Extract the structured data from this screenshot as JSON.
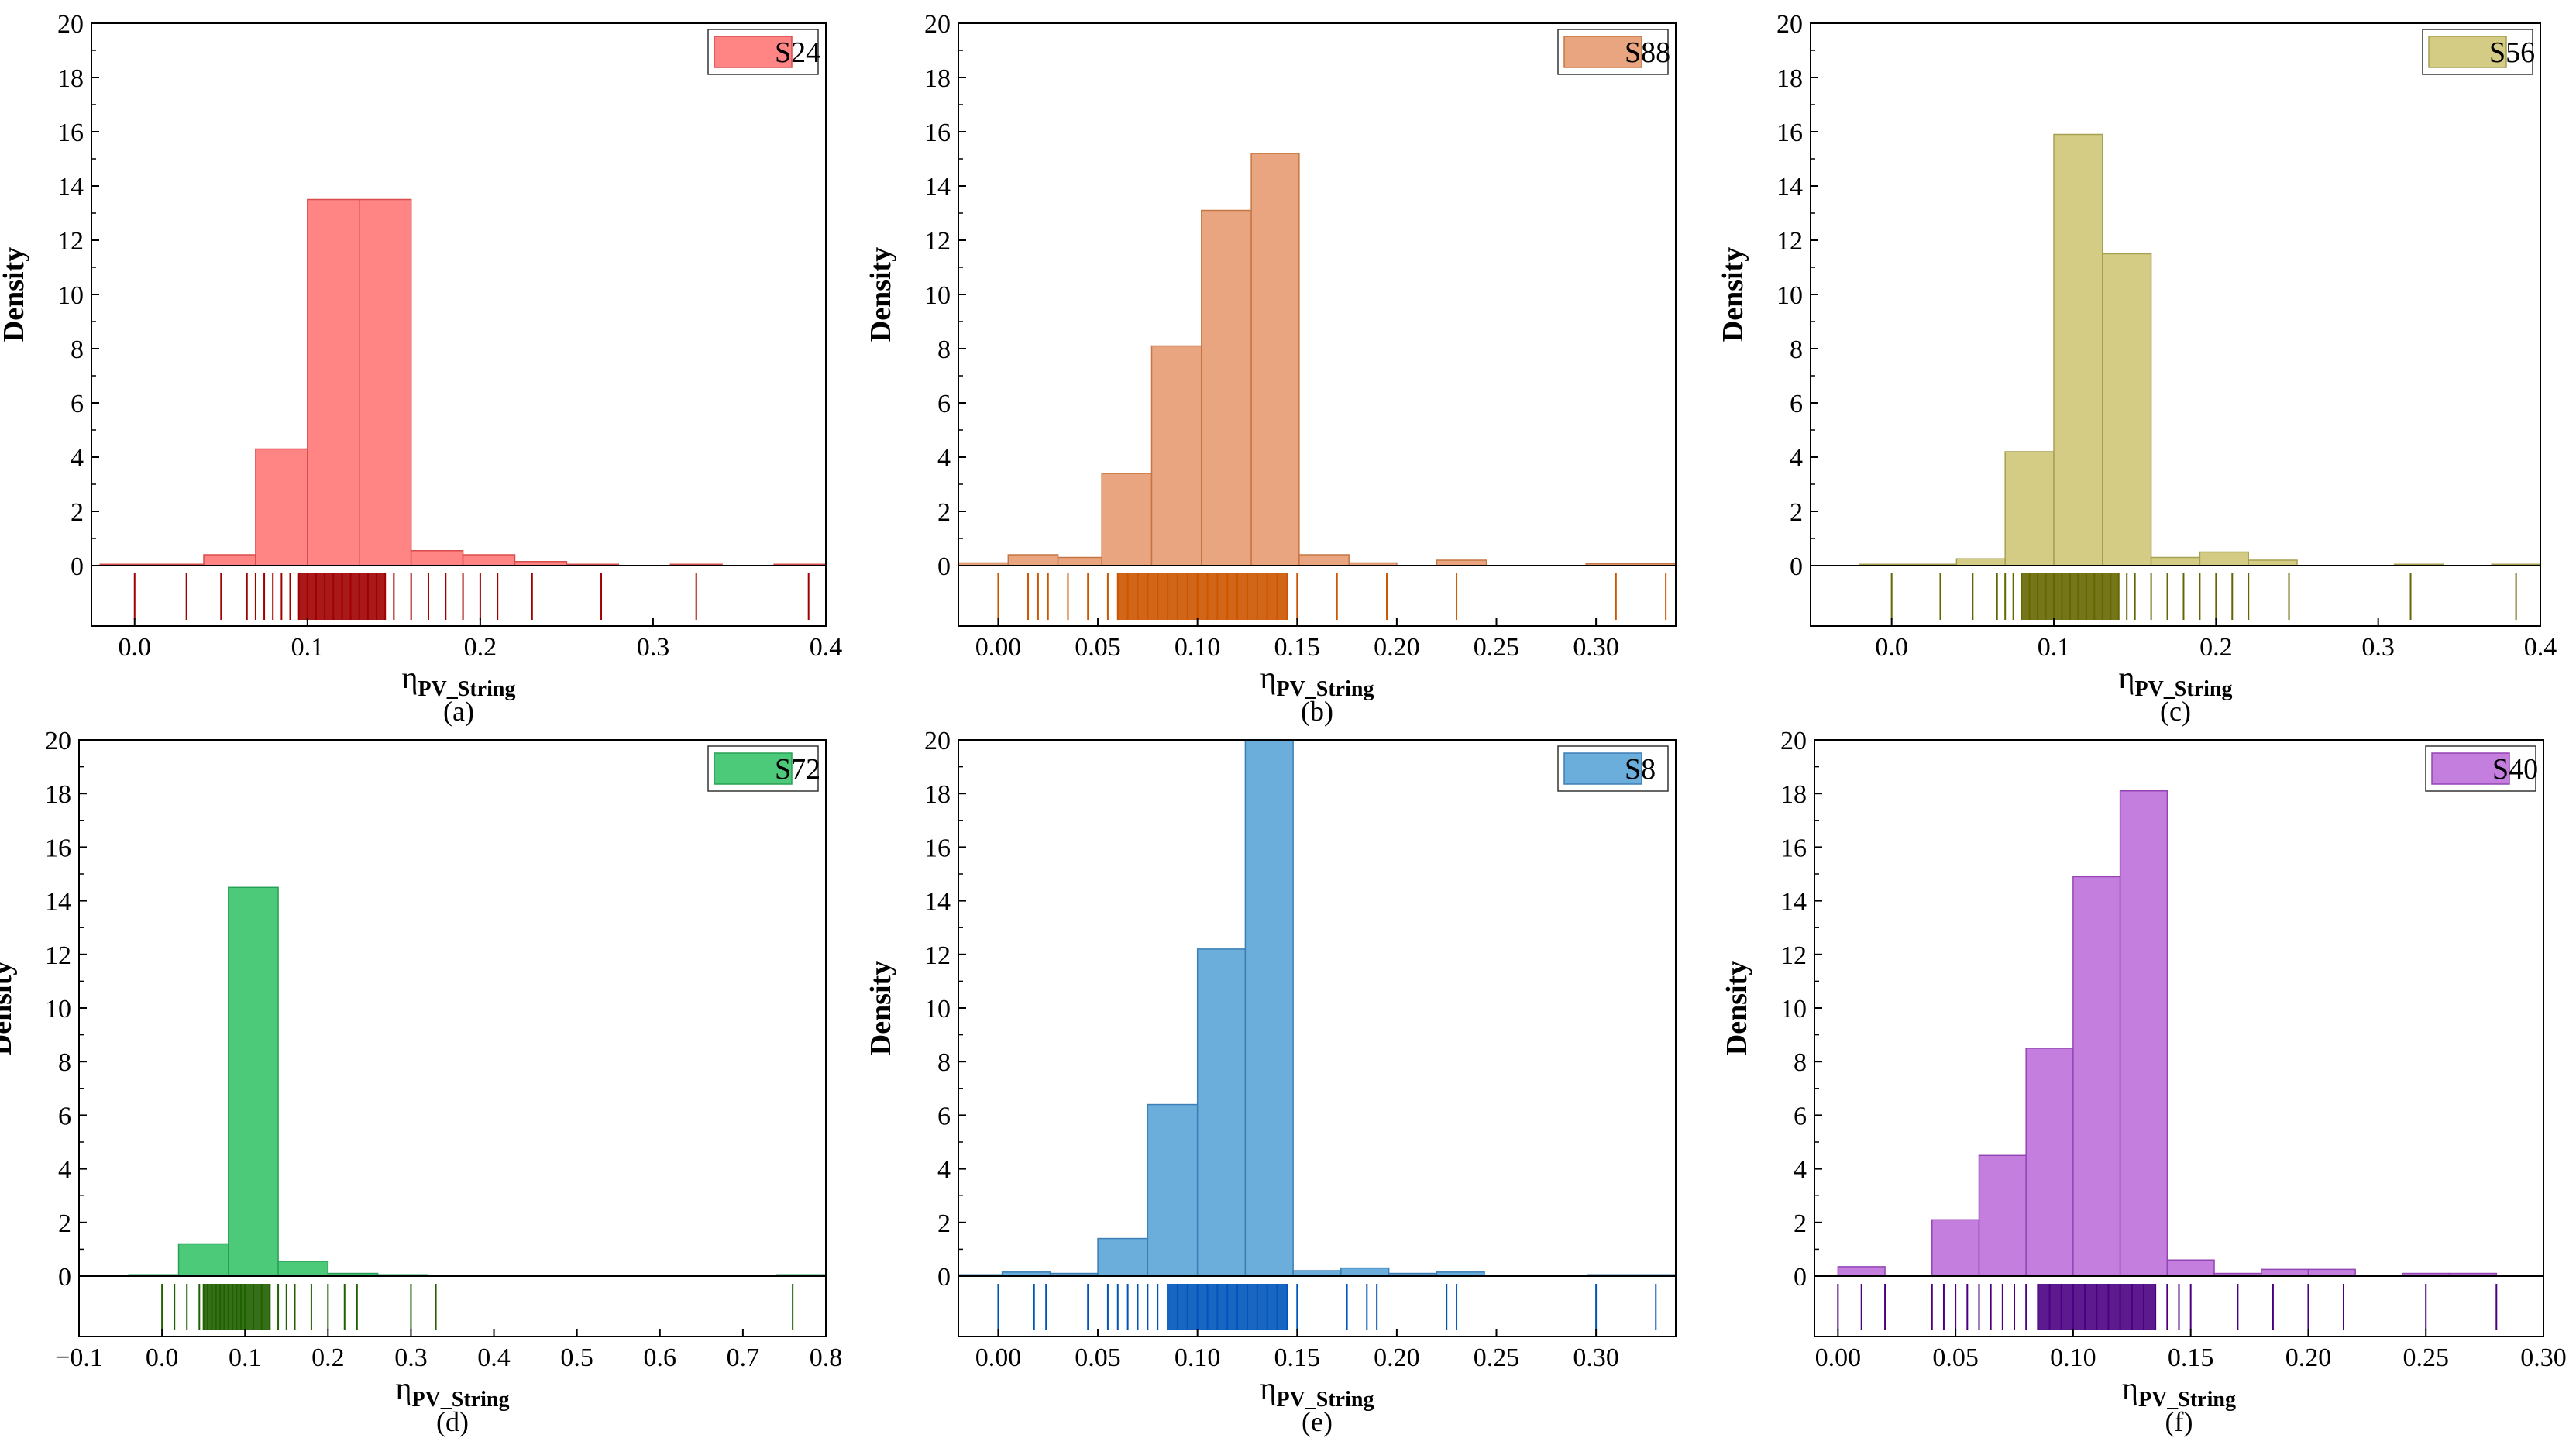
{
  "figure": {
    "yaxis_label": "Density",
    "xaxis_label_main": "η",
    "xaxis_label_sub": "PV_String"
  },
  "chart_data": [
    {
      "type": "bar",
      "panel": "(a)",
      "legend": "S24",
      "color": "#FF8585",
      "edge": "#D84C4C",
      "rug_color": "#A00000",
      "xlim": [
        -0.025,
        0.4
      ],
      "ylim": [
        0,
        20
      ],
      "xticks": [
        0.0,
        0.1,
        0.2,
        0.3,
        0.4
      ],
      "xtick_labels": [
        "0.0",
        "0.1",
        "0.2",
        "0.3",
        "0.4"
      ],
      "yticks": [
        0,
        2,
        4,
        6,
        8,
        10,
        12,
        14,
        16,
        18,
        20
      ],
      "bins": [
        [
          -0.02,
          0.01,
          0.05
        ],
        [
          0.01,
          0.04,
          0.05
        ],
        [
          0.04,
          0.07,
          0.4
        ],
        [
          0.07,
          0.1,
          4.3
        ],
        [
          0.1,
          0.13,
          13.5
        ],
        [
          0.13,
          0.16,
          13.5
        ],
        [
          0.16,
          0.19,
          0.55
        ],
        [
          0.19,
          0.22,
          0.4
        ],
        [
          0.22,
          0.25,
          0.15
        ],
        [
          0.25,
          0.28,
          0.05
        ],
        [
          0.31,
          0.34,
          0.05
        ],
        [
          0.37,
          0.4,
          0.05
        ]
      ],
      "rug": [
        0.0,
        0.03,
        0.05,
        0.065,
        0.07,
        0.075,
        0.08,
        0.085,
        0.09,
        0.095,
        0.1,
        0.105,
        0.11,
        0.115,
        0.12,
        0.125,
        0.13,
        0.135,
        0.14,
        0.145,
        0.15,
        0.16,
        0.17,
        0.18,
        0.19,
        0.2,
        0.21,
        0.23,
        0.27,
        0.325,
        0.39
      ],
      "rug_dense": [
        0.095,
        0.145
      ]
    },
    {
      "type": "bar",
      "panel": "(b)",
      "legend": "S88",
      "color": "#E8A57F",
      "edge": "#C57644",
      "rug_color": "#CC5500",
      "xlim": [
        -0.02,
        0.34
      ],
      "ylim": [
        0,
        20
      ],
      "xticks": [
        0.0,
        0.05,
        0.1,
        0.15,
        0.2,
        0.25,
        0.3
      ],
      "xtick_labels": [
        "0.00",
        "0.05",
        "0.10",
        "0.15",
        "0.20",
        "0.25",
        "0.30"
      ],
      "yticks": [
        0,
        2,
        4,
        6,
        8,
        10,
        12,
        14,
        16,
        18,
        20
      ],
      "bins": [
        [
          -0.02,
          0.005,
          0.1
        ],
        [
          0.005,
          0.03,
          0.4
        ],
        [
          0.03,
          0.052,
          0.3
        ],
        [
          0.052,
          0.077,
          3.4
        ],
        [
          0.077,
          0.102,
          8.1
        ],
        [
          0.102,
          0.127,
          13.1
        ],
        [
          0.127,
          0.151,
          15.2
        ],
        [
          0.151,
          0.176,
          0.4
        ],
        [
          0.176,
          0.2,
          0.1
        ],
        [
          0.22,
          0.245,
          0.2
        ],
        [
          0.295,
          0.34,
          0.07
        ]
      ],
      "rug": [
        0.0,
        0.015,
        0.02,
        0.025,
        0.035,
        0.045,
        0.055,
        0.06,
        0.065,
        0.07,
        0.075,
        0.08,
        0.085,
        0.09,
        0.095,
        0.1,
        0.105,
        0.11,
        0.115,
        0.12,
        0.125,
        0.13,
        0.135,
        0.14,
        0.145,
        0.15,
        0.17,
        0.195,
        0.23,
        0.31,
        0.335
      ],
      "rug_dense": [
        0.06,
        0.145
      ]
    },
    {
      "type": "bar",
      "panel": "(c)",
      "legend": "S56",
      "color": "#D4CC85",
      "edge": "#A69F50",
      "rug_color": "#666600",
      "xlim": [
        -0.05,
        0.4
      ],
      "ylim": [
        0,
        20
      ],
      "xticks": [
        0.0,
        0.1,
        0.2,
        0.3,
        0.4
      ],
      "xtick_labels": [
        "0.0",
        "0.1",
        "0.2",
        "0.3",
        "0.4"
      ],
      "yticks": [
        0,
        2,
        4,
        6,
        8,
        10,
        12,
        14,
        16,
        18,
        20
      ],
      "bins": [
        [
          -0.02,
          0.01,
          0.05
        ],
        [
          0.01,
          0.04,
          0.05
        ],
        [
          0.04,
          0.07,
          0.25
        ],
        [
          0.07,
          0.1,
          4.2
        ],
        [
          0.1,
          0.13,
          15.9
        ],
        [
          0.13,
          0.16,
          11.5
        ],
        [
          0.16,
          0.19,
          0.3
        ],
        [
          0.19,
          0.22,
          0.5
        ],
        [
          0.22,
          0.25,
          0.2
        ],
        [
          0.31,
          0.34,
          0.05
        ],
        [
          0.37,
          0.4,
          0.05
        ]
      ],
      "rug": [
        0.0,
        0.03,
        0.05,
        0.065,
        0.07,
        0.075,
        0.08,
        0.085,
        0.09,
        0.095,
        0.1,
        0.105,
        0.11,
        0.115,
        0.12,
        0.125,
        0.13,
        0.135,
        0.14,
        0.145,
        0.15,
        0.16,
        0.17,
        0.18,
        0.19,
        0.2,
        0.21,
        0.22,
        0.245,
        0.32,
        0.385
      ],
      "rug_dense": [
        0.08,
        0.14
      ]
    },
    {
      "type": "bar",
      "panel": "(d)",
      "legend": "S72",
      "color": "#4DC97A",
      "edge": "#27A055",
      "rug_color": "#1F6000",
      "xlim": [
        -0.1,
        0.8
      ],
      "ylim": [
        0,
        20
      ],
      "xticks": [
        -0.1,
        0.0,
        0.1,
        0.2,
        0.3,
        0.4,
        0.5,
        0.6,
        0.7,
        0.8
      ],
      "xtick_labels": [
        "−0.1",
        "0.0",
        "0.1",
        "0.2",
        "0.3",
        "0.4",
        "0.5",
        "0.6",
        "0.7",
        "0.8"
      ],
      "yticks": [
        0,
        2,
        4,
        6,
        8,
        10,
        12,
        14,
        16,
        18,
        20
      ],
      "bins": [
        [
          -0.04,
          0.02,
          0.05
        ],
        [
          0.02,
          0.08,
          1.2
        ],
        [
          0.08,
          0.14,
          14.5
        ],
        [
          0.14,
          0.2,
          0.55
        ],
        [
          0.2,
          0.26,
          0.1
        ],
        [
          0.26,
          0.32,
          0.05
        ],
        [
          0.74,
          0.8,
          0.05
        ]
      ],
      "rug": [
        0.0,
        0.015,
        0.03,
        0.045,
        0.05,
        0.055,
        0.06,
        0.065,
        0.07,
        0.075,
        0.08,
        0.085,
        0.09,
        0.095,
        0.1,
        0.11,
        0.12,
        0.13,
        0.14,
        0.15,
        0.16,
        0.18,
        0.2,
        0.22,
        0.235,
        0.3,
        0.33,
        0.76
      ],
      "rug_dense": [
        0.05,
        0.13
      ]
    },
    {
      "type": "bar",
      "panel": "(e)",
      "legend": "S8",
      "color": "#6BAEDB",
      "edge": "#3C7FB6",
      "rug_color": "#0055BB",
      "xlim": [
        -0.02,
        0.34
      ],
      "ylim": [
        0,
        20
      ],
      "xticks": [
        0.0,
        0.05,
        0.1,
        0.15,
        0.2,
        0.25,
        0.3
      ],
      "xtick_labels": [
        "0.00",
        "0.05",
        "0.10",
        "0.15",
        "0.20",
        "0.25",
        "0.30"
      ],
      "yticks": [
        0,
        2,
        4,
        6,
        8,
        10,
        12,
        14,
        16,
        18,
        20
      ],
      "bins": [
        [
          -0.02,
          0.002,
          0.05
        ],
        [
          0.002,
          0.026,
          0.15
        ],
        [
          0.026,
          0.05,
          0.1
        ],
        [
          0.05,
          0.075,
          1.4
        ],
        [
          0.075,
          0.1,
          6.4
        ],
        [
          0.1,
          0.124,
          12.2
        ],
        [
          0.124,
          0.148,
          20.0
        ],
        [
          0.148,
          0.172,
          0.2
        ],
        [
          0.172,
          0.196,
          0.3
        ],
        [
          0.196,
          0.22,
          0.1
        ],
        [
          0.22,
          0.244,
          0.15
        ],
        [
          0.296,
          0.34,
          0.05
        ]
      ],
      "rug": [
        0.0,
        0.018,
        0.024,
        0.045,
        0.055,
        0.06,
        0.065,
        0.07,
        0.075,
        0.08,
        0.085,
        0.09,
        0.095,
        0.1,
        0.105,
        0.11,
        0.115,
        0.12,
        0.125,
        0.13,
        0.135,
        0.14,
        0.145,
        0.15,
        0.175,
        0.185,
        0.19,
        0.225,
        0.23,
        0.3,
        0.33
      ],
      "rug_dense": [
        0.085,
        0.145
      ]
    },
    {
      "type": "bar",
      "panel": "(f)",
      "legend": "S40",
      "color": "#C47EDD",
      "edge": "#9444B4",
      "rug_color": "#4B0082",
      "xlim": [
        -0.01,
        0.3
      ],
      "ylim": [
        0,
        20
      ],
      "xticks": [
        0.0,
        0.05,
        0.1,
        0.15,
        0.2,
        0.25,
        0.3
      ],
      "xtick_labels": [
        "0.00",
        "0.05",
        "0.10",
        "0.15",
        "0.20",
        "0.25",
        "0.30"
      ],
      "yticks": [
        0,
        2,
        4,
        6,
        8,
        10,
        12,
        14,
        16,
        18,
        20
      ],
      "bins": [
        [
          0.0,
          0.02,
          0.35
        ],
        [
          0.04,
          0.06,
          2.1
        ],
        [
          0.06,
          0.08,
          4.5
        ],
        [
          0.08,
          0.1,
          8.5
        ],
        [
          0.1,
          0.12,
          14.9
        ],
        [
          0.12,
          0.14,
          18.1
        ],
        [
          0.14,
          0.16,
          0.6
        ],
        [
          0.16,
          0.18,
          0.1
        ],
        [
          0.18,
          0.2,
          0.25
        ],
        [
          0.2,
          0.22,
          0.25
        ],
        [
          0.24,
          0.26,
          0.1
        ],
        [
          0.26,
          0.28,
          0.1
        ]
      ],
      "rug": [
        0.0,
        0.01,
        0.02,
        0.04,
        0.045,
        0.05,
        0.055,
        0.06,
        0.065,
        0.07,
        0.075,
        0.08,
        0.085,
        0.09,
        0.095,
        0.1,
        0.105,
        0.11,
        0.115,
        0.12,
        0.125,
        0.13,
        0.135,
        0.14,
        0.145,
        0.15,
        0.17,
        0.185,
        0.2,
        0.215,
        0.25,
        0.28
      ],
      "rug_dense": [
        0.085,
        0.135
      ]
    }
  ]
}
